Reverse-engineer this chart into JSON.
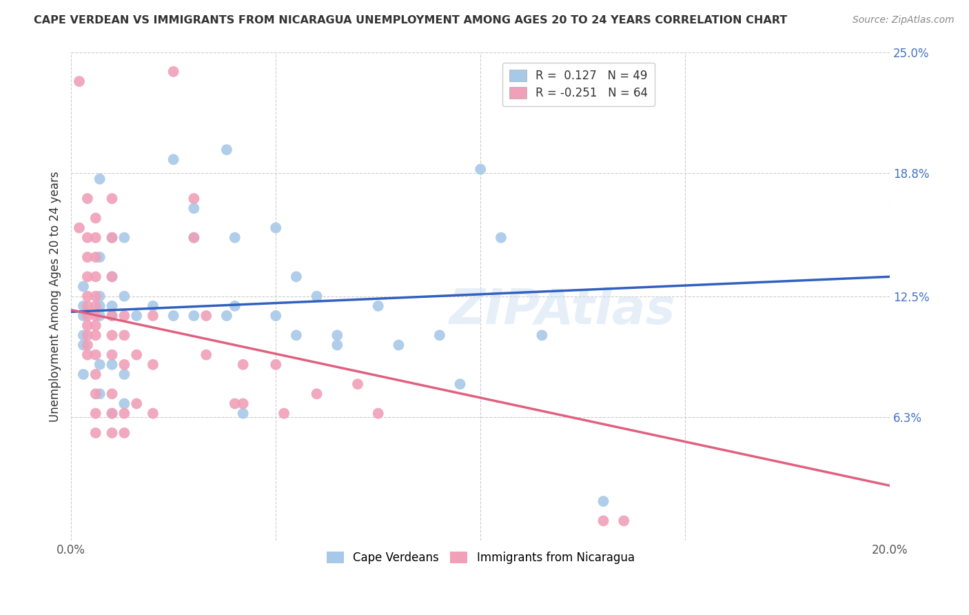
{
  "title": "CAPE VERDEAN VS IMMIGRANTS FROM NICARAGUA UNEMPLOYMENT AMONG AGES 20 TO 24 YEARS CORRELATION CHART",
  "source": "Source: ZipAtlas.com",
  "ylabel": "Unemployment Among Ages 20 to 24 years",
  "xlim": [
    0.0,
    0.2
  ],
  "ylim": [
    0.0,
    0.25
  ],
  "ytick_vals": [
    0.0,
    0.063,
    0.125,
    0.188,
    0.25
  ],
  "ytick_labels": [
    "",
    "6.3%",
    "12.5%",
    "18.8%",
    "25.0%"
  ],
  "xtick_vals": [
    0.0,
    0.05,
    0.1,
    0.15,
    0.2
  ],
  "xtick_labels": [
    "0.0%",
    "",
    "",
    "",
    "20.0%"
  ],
  "blue_color": "#a8c8e8",
  "pink_color": "#f0a0b8",
  "blue_line_color": "#3060c0",
  "pink_line_color": "#e06080",
  "blue_line": [
    [
      0.0,
      0.117
    ],
    [
      0.2,
      0.135
    ]
  ],
  "pink_line": [
    [
      0.0,
      0.118
    ],
    [
      0.2,
      0.028
    ]
  ],
  "blue_scatter": [
    [
      0.003,
      0.105
    ],
    [
      0.003,
      0.12
    ],
    [
      0.003,
      0.115
    ],
    [
      0.003,
      0.13
    ],
    [
      0.003,
      0.1
    ],
    [
      0.003,
      0.085
    ],
    [
      0.007,
      0.185
    ],
    [
      0.007,
      0.145
    ],
    [
      0.007,
      0.125
    ],
    [
      0.007,
      0.12
    ],
    [
      0.007,
      0.115
    ],
    [
      0.007,
      0.09
    ],
    [
      0.007,
      0.075
    ],
    [
      0.01,
      0.155
    ],
    [
      0.01,
      0.135
    ],
    [
      0.01,
      0.12
    ],
    [
      0.01,
      0.115
    ],
    [
      0.01,
      0.09
    ],
    [
      0.01,
      0.065
    ],
    [
      0.013,
      0.155
    ],
    [
      0.013,
      0.125
    ],
    [
      0.013,
      0.085
    ],
    [
      0.013,
      0.07
    ],
    [
      0.016,
      0.115
    ],
    [
      0.02,
      0.12
    ],
    [
      0.025,
      0.195
    ],
    [
      0.025,
      0.115
    ],
    [
      0.03,
      0.17
    ],
    [
      0.03,
      0.155
    ],
    [
      0.03,
      0.115
    ],
    [
      0.038,
      0.2
    ],
    [
      0.038,
      0.115
    ],
    [
      0.04,
      0.155
    ],
    [
      0.04,
      0.12
    ],
    [
      0.042,
      0.065
    ],
    [
      0.05,
      0.16
    ],
    [
      0.05,
      0.115
    ],
    [
      0.055,
      0.135
    ],
    [
      0.055,
      0.105
    ],
    [
      0.06,
      0.125
    ],
    [
      0.065,
      0.105
    ],
    [
      0.065,
      0.1
    ],
    [
      0.075,
      0.12
    ],
    [
      0.08,
      0.1
    ],
    [
      0.09,
      0.105
    ],
    [
      0.095,
      0.08
    ],
    [
      0.1,
      0.19
    ],
    [
      0.105,
      0.155
    ],
    [
      0.115,
      0.105
    ],
    [
      0.13,
      0.02
    ]
  ],
  "pink_scatter": [
    [
      0.002,
      0.235
    ],
    [
      0.002,
      0.16
    ],
    [
      0.004,
      0.175
    ],
    [
      0.004,
      0.155
    ],
    [
      0.004,
      0.145
    ],
    [
      0.004,
      0.135
    ],
    [
      0.004,
      0.125
    ],
    [
      0.004,
      0.12
    ],
    [
      0.004,
      0.115
    ],
    [
      0.004,
      0.11
    ],
    [
      0.004,
      0.105
    ],
    [
      0.004,
      0.1
    ],
    [
      0.004,
      0.095
    ],
    [
      0.006,
      0.165
    ],
    [
      0.006,
      0.155
    ],
    [
      0.006,
      0.145
    ],
    [
      0.006,
      0.135
    ],
    [
      0.006,
      0.125
    ],
    [
      0.006,
      0.12
    ],
    [
      0.006,
      0.115
    ],
    [
      0.006,
      0.11
    ],
    [
      0.006,
      0.105
    ],
    [
      0.006,
      0.095
    ],
    [
      0.006,
      0.085
    ],
    [
      0.006,
      0.075
    ],
    [
      0.006,
      0.065
    ],
    [
      0.006,
      0.055
    ],
    [
      0.01,
      0.175
    ],
    [
      0.01,
      0.155
    ],
    [
      0.01,
      0.135
    ],
    [
      0.01,
      0.115
    ],
    [
      0.01,
      0.105
    ],
    [
      0.01,
      0.095
    ],
    [
      0.01,
      0.075
    ],
    [
      0.01,
      0.065
    ],
    [
      0.01,
      0.055
    ],
    [
      0.013,
      0.115
    ],
    [
      0.013,
      0.105
    ],
    [
      0.013,
      0.09
    ],
    [
      0.013,
      0.065
    ],
    [
      0.013,
      0.055
    ],
    [
      0.016,
      0.095
    ],
    [
      0.016,
      0.07
    ],
    [
      0.02,
      0.115
    ],
    [
      0.02,
      0.09
    ],
    [
      0.02,
      0.065
    ],
    [
      0.025,
      0.24
    ],
    [
      0.03,
      0.175
    ],
    [
      0.03,
      0.155
    ],
    [
      0.033,
      0.115
    ],
    [
      0.033,
      0.095
    ],
    [
      0.04,
      0.07
    ],
    [
      0.042,
      0.09
    ],
    [
      0.042,
      0.07
    ],
    [
      0.05,
      0.09
    ],
    [
      0.052,
      0.065
    ],
    [
      0.06,
      0.075
    ],
    [
      0.07,
      0.08
    ],
    [
      0.075,
      0.065
    ],
    [
      0.13,
      0.01
    ],
    [
      0.135,
      0.01
    ]
  ]
}
